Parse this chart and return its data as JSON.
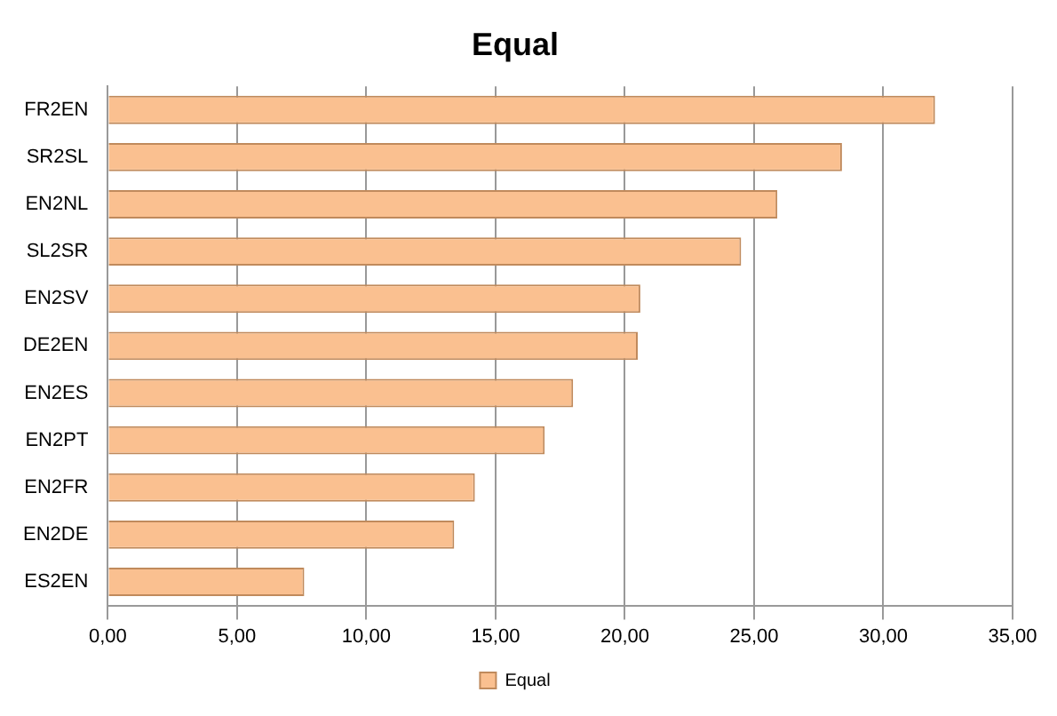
{
  "chart_data": {
    "type": "bar",
    "orientation": "horizontal",
    "title": "Equal",
    "categories": [
      "FR2EN",
      "SR2SL",
      "EN2NL",
      "SL2SR",
      "EN2SV",
      "DE2EN",
      "EN2ES",
      "EN2PT",
      "EN2FR",
      "EN2DE",
      "ES2EN"
    ],
    "series": [
      {
        "name": "Equal",
        "color": "#fac090",
        "values": [
          32.0,
          28.4,
          25.9,
          24.5,
          20.6,
          20.5,
          18.0,
          16.9,
          14.2,
          13.4,
          7.6
        ]
      }
    ],
    "xlim": [
      0,
      35
    ],
    "xticks": [
      {
        "value": 0,
        "label": "0,00"
      },
      {
        "value": 5,
        "label": "5,00"
      },
      {
        "value": 10,
        "label": "10,00"
      },
      {
        "value": 15,
        "label": "15,00"
      },
      {
        "value": 20,
        "label": "20,00"
      },
      {
        "value": 25,
        "label": "25,00"
      },
      {
        "value": 30,
        "label": "30,00"
      },
      {
        "value": 35,
        "label": "35,00"
      }
    ],
    "grid": "x",
    "legend": "bottom"
  }
}
